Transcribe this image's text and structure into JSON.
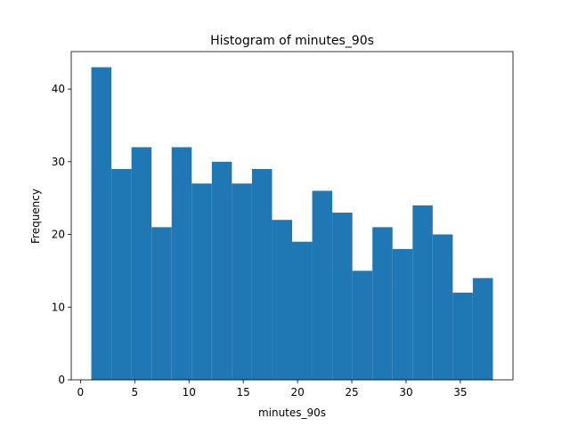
{
  "chart_data": {
    "type": "bar",
    "title": "Histogram of minutes_90s",
    "xlabel": "minutes_90s",
    "ylabel": "Frequency",
    "bar_color": "#1f77b4",
    "grid": false,
    "xlim": [
      -0.85,
      39.85
    ],
    "ylim": [
      0,
      45.15
    ],
    "bin_edges": [
      1.0,
      2.85,
      4.7,
      6.55,
      8.4,
      10.25,
      12.1,
      13.95,
      15.8,
      17.65,
      19.5,
      21.35,
      23.2,
      25.05,
      26.9,
      28.75,
      30.6,
      32.45,
      34.3,
      36.15,
      38.0
    ],
    "values": [
      43,
      29,
      32,
      21,
      32,
      27,
      30,
      27,
      29,
      22,
      19,
      26,
      23,
      15,
      21,
      18,
      24,
      20,
      12,
      14
    ],
    "xticks": [
      0,
      5,
      10,
      15,
      20,
      25,
      30,
      35
    ],
    "xtick_labels": [
      "0",
      "5",
      "10",
      "15",
      "20",
      "25",
      "30",
      "35"
    ],
    "yticks": [
      0,
      10,
      20,
      30,
      40
    ],
    "ytick_labels": [
      "0",
      "10",
      "20",
      "30",
      "40"
    ]
  }
}
